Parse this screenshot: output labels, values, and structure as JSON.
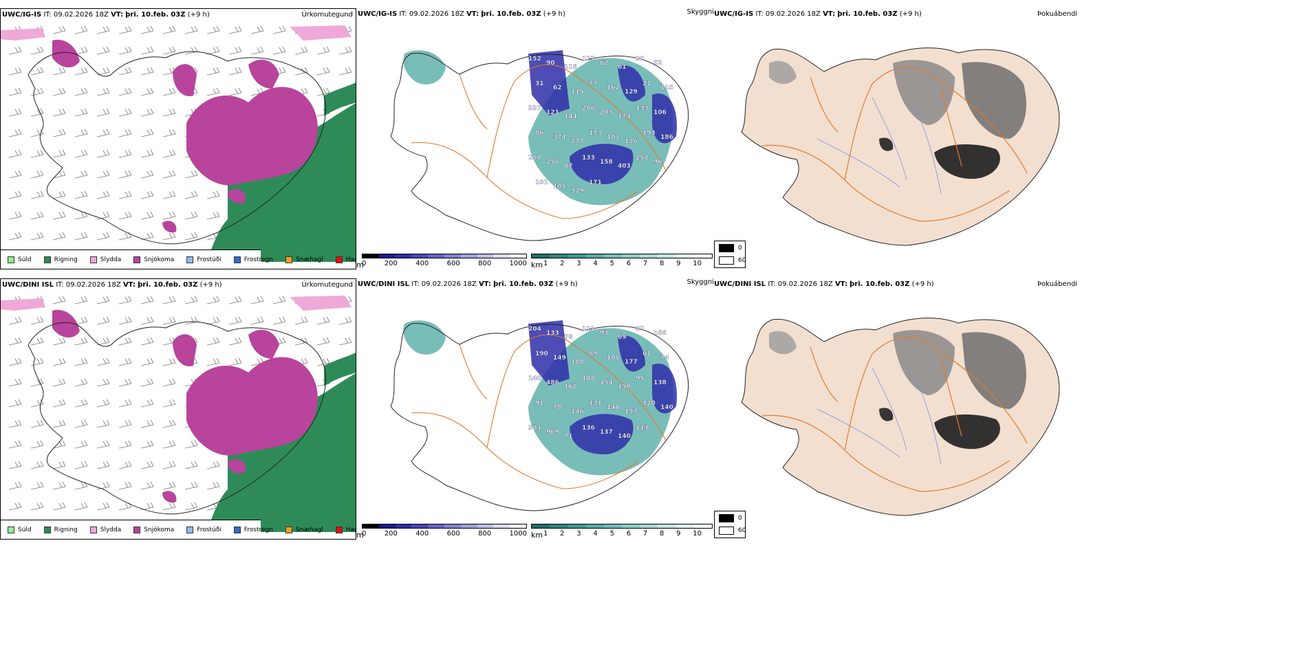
{
  "rows": [
    {
      "model": "UWC/IG-IS",
      "it_label": "IT:",
      "it_value": "09.02.2026 18Z",
      "vt_label": "VT:",
      "vt_value": "þri. 10.feb. 03Z",
      "lead": "(+9 h)",
      "titles": {
        "precip": "Úrkomutegund",
        "visibility": "Skyggni",
        "fog": "Þokuábendi"
      },
      "vis_numbers": [
        "152",
        "90",
        "116",
        "123",
        "62",
        "61",
        "90",
        "52",
        "31",
        "62",
        "115",
        "77",
        "162",
        "129",
        "21",
        "115",
        "337",
        "121",
        "144",
        "206",
        "203",
        "174",
        "133",
        "106",
        "86",
        "374",
        "277",
        "173",
        "101",
        "126",
        "193",
        "186",
        "250",
        "256",
        "87",
        "133",
        "158",
        "403",
        "258",
        "96",
        "101",
        "105",
        "329",
        "171"
      ]
    },
    {
      "model": "UWC/DINI ISL",
      "it_label": "IT:",
      "it_value": "09.02.2026 18Z",
      "vt_label": "VT:",
      "vt_value": "þri. 10.feb. 03Z",
      "lead": "(+9 h)",
      "titles": {
        "precip": "Úrkomutegund",
        "visibility": "Skyggni",
        "fog": "Þokuábendi"
      },
      "vis_numbers": [
        "204",
        "133",
        "78",
        "111",
        "93",
        "69",
        "82",
        "166",
        "190",
        "149",
        "188",
        "89",
        "108",
        "177",
        "61",
        "74",
        "140",
        "486",
        "168",
        "108",
        "454",
        "150",
        "95",
        "138",
        "91",
        "78",
        "146",
        "131",
        "140",
        "157",
        "120",
        "140",
        "304",
        "969",
        "71",
        "136",
        "137",
        "140",
        "113"
      ]
    }
  ],
  "precip_legend": [
    {
      "label": "Súld",
      "color": "#90ee90"
    },
    {
      "label": "Rigning",
      "color": "#2e8b57"
    },
    {
      "label": "Slydda",
      "color": "#f0a8d8"
    },
    {
      "label": "Snjókoma",
      "color": "#b8449c"
    },
    {
      "label": "Frostúði",
      "color": "#8fbce8"
    },
    {
      "label": "Frostregn",
      "color": "#2f6ec8"
    },
    {
      "label": "Snæhagl",
      "color": "#f0a020"
    },
    {
      "label": "Haglél",
      "color": "#e01010"
    }
  ],
  "vis_scale_m": {
    "unit": "m",
    "ticks": [
      "0",
      "200",
      "400",
      "600",
      "800",
      "1000"
    ],
    "colors": [
      "#000000",
      "#1a1a8c",
      "#2e2ea8",
      "#4747b8",
      "#6464c4",
      "#8282d0",
      "#a0a0dc",
      "#bebee8",
      "#dcdcf4",
      "#f4f4fc"
    ]
  },
  "vis_scale_km": {
    "unit": "km",
    "ticks": [
      "1",
      "2",
      "3",
      "4",
      "5",
      "6",
      "7",
      "8",
      "9",
      "10"
    ],
    "colors": [
      "#1f6f6a",
      "#2e8580",
      "#3f9a94",
      "#58aca6",
      "#72bcb7",
      "#8ecbc6",
      "#aad8d4",
      "#c6e5e2",
      "#e2f2f0",
      "#ffffff"
    ]
  },
  "fog_legend": [
    {
      "label": "0",
      "color": "#000000"
    },
    {
      "label": "60",
      "color": "#ffffff"
    }
  ],
  "colors": {
    "coast": "#222222",
    "land_fog": "#f3dfcf",
    "roads": "#e07a2a",
    "rivers": "#7a8cf0",
    "snow": "#b8449c",
    "rain": "#2e8b57",
    "sleet": "#f0a8d8",
    "vis_low": "#2e2ea8",
    "vis_teal": "#58aca6"
  }
}
